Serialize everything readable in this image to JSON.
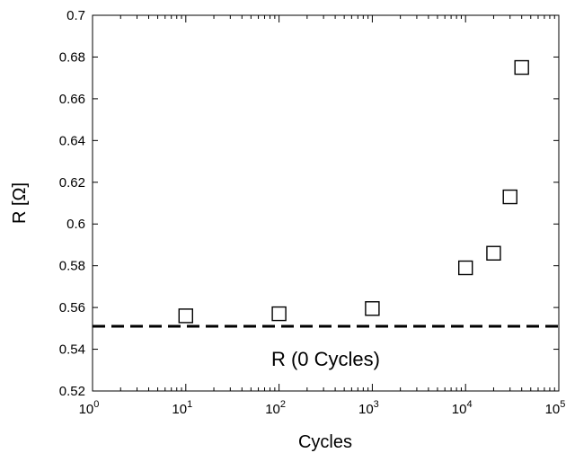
{
  "chart_data": {
    "type": "scatter",
    "x_scale": "log",
    "xlabel": "Cycles",
    "ylabel": "R [Ω]",
    "xlim": [
      1,
      100000
    ],
    "ylim": [
      0.52,
      0.7
    ],
    "x_ticks": [
      {
        "value": 1,
        "base": "10",
        "exp": "0"
      },
      {
        "value": 10,
        "base": "10",
        "exp": "1"
      },
      {
        "value": 100,
        "base": "10",
        "exp": "2"
      },
      {
        "value": 1000,
        "base": "10",
        "exp": "3"
      },
      {
        "value": 10000,
        "base": "10",
        "exp": "4"
      },
      {
        "value": 100000,
        "base": "10",
        "exp": "5"
      }
    ],
    "y_ticks": [
      "0.52",
      "0.54",
      "0.56",
      "0.58",
      "0.6",
      "0.62",
      "0.64",
      "0.66",
      "0.68",
      "0.7"
    ],
    "grid": false,
    "points": [
      {
        "x": 10,
        "y": 0.556
      },
      {
        "x": 100,
        "y": 0.557
      },
      {
        "x": 1000,
        "y": 0.5595
      },
      {
        "x": 10000,
        "y": 0.579
      },
      {
        "x": 20000,
        "y": 0.586
      },
      {
        "x": 30000,
        "y": 0.613
      },
      {
        "x": 40000,
        "y": 0.675
      }
    ],
    "reference_line": {
      "y": 0.551,
      "label": "R (0 Cycles)",
      "style": "dashed"
    },
    "marker": "open-square",
    "colors": {
      "marker": "#000000",
      "line": "#000000",
      "axes": "#000000"
    }
  }
}
